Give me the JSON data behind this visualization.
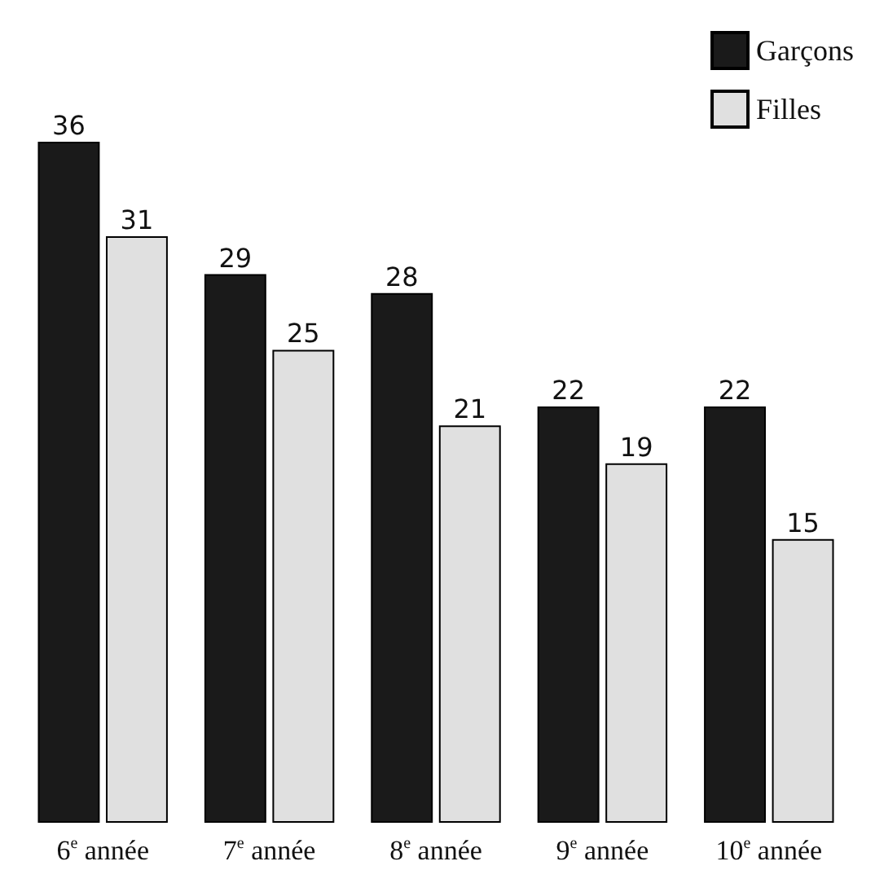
{
  "chart_data": {
    "type": "bar",
    "categories": [
      "6$^{e}$ année",
      "7$^{e}$ année",
      "8$^{e}$ année",
      "9$^{e}$ année",
      "10$^{e}$ année"
    ],
    "series": [
      {
        "name": "Garçons",
        "color": "#1a1a1a",
        "values": [
          36,
          29,
          28,
          22,
          22
        ]
      },
      {
        "name": "Filles",
        "color": "#e0e0e0",
        "values": [
          31,
          25,
          21,
          19,
          15
        ]
      }
    ],
    "data_labels": true,
    "legend": "top right"
  }
}
